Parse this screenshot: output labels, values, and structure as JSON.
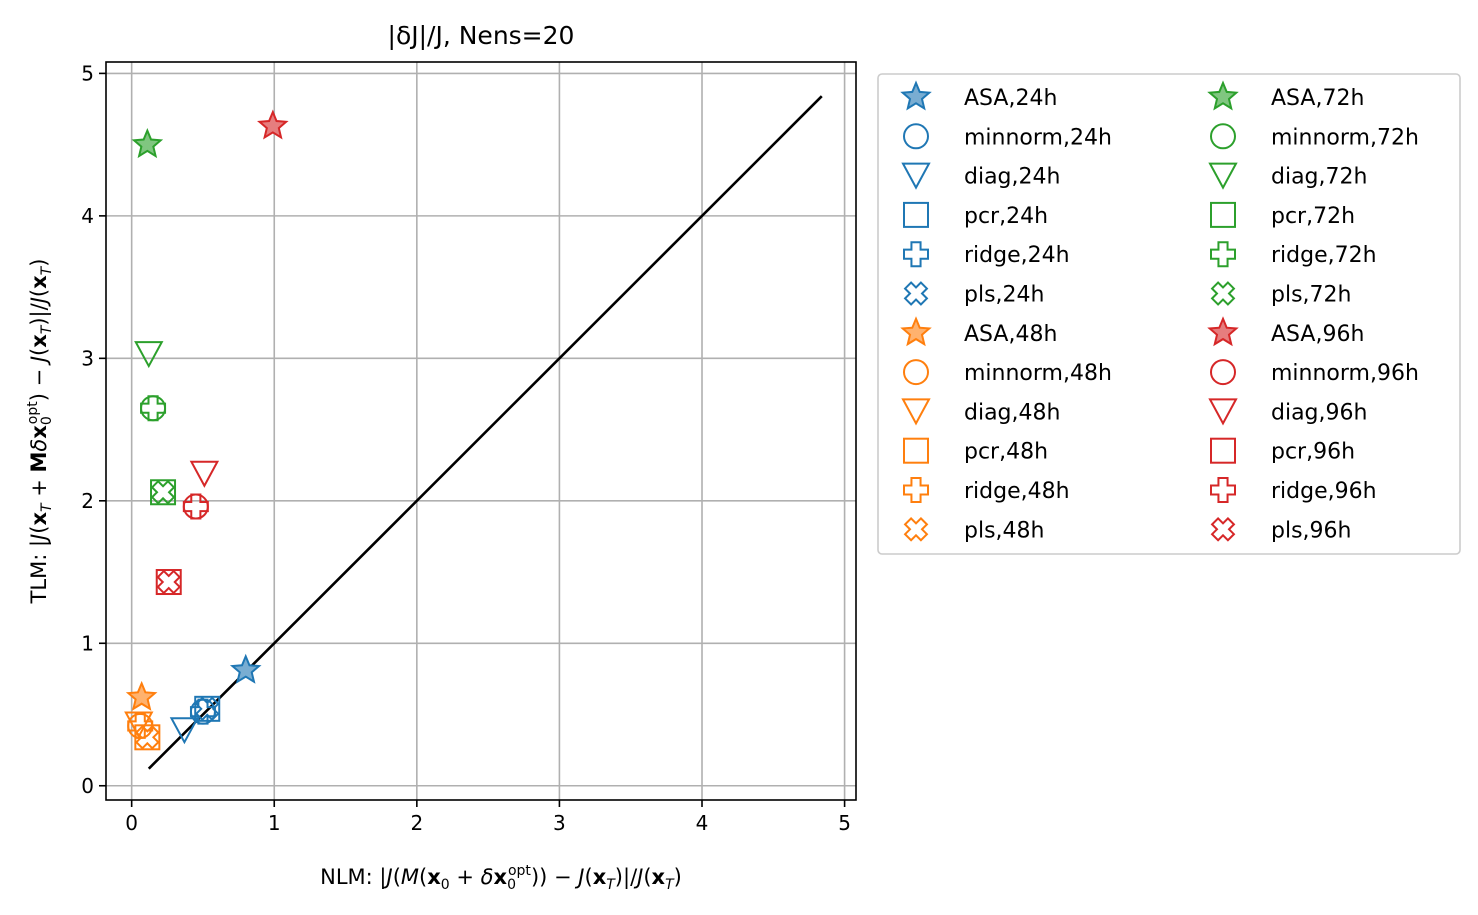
{
  "chart_data": {
    "type": "scatter",
    "title": "|δJ|/J, Nens=20",
    "xlabel": "NLM: |J(M(x₀ + δx₀ᵒᵖᵗ)) − J(x_T)|/J(x_T)",
    "ylabel": "TLM: |J(x_T + Mδx₀ᵒᵖᵗ) − J(x_T)|/J(x_T)",
    "xlim": [
      -0.18,
      5.08
    ],
    "ylim": [
      -0.1,
      5.08
    ],
    "xticks": [
      0,
      1,
      2,
      3,
      4,
      5
    ],
    "yticks": [
      0,
      1,
      2,
      3,
      4,
      5
    ],
    "xtick_labels": [
      "0",
      "1",
      "2",
      "3",
      "4",
      "5"
    ],
    "ytick_labels": [
      "0",
      "1",
      "2",
      "3",
      "4",
      "5"
    ],
    "grid": true,
    "legend_placement": "outside-right",
    "legend_columns": 2,
    "reference_line": {
      "x": [
        0.12,
        4.84
      ],
      "y": [
        0.12,
        4.84
      ],
      "color": "#000000"
    },
    "colors": {
      "24h": "#1f77b4",
      "48h": "#ff7f0e",
      "72h": "#2ca02c",
      "96h": "#d62728"
    },
    "series": [
      {
        "name": "ASA,24h",
        "marker": "star",
        "color": "#1f77b4",
        "filled": true,
        "x": 0.8,
        "y": 0.81
      },
      {
        "name": "minnorm,24h",
        "marker": "circle",
        "color": "#1f77b4",
        "filled": false,
        "x": 0.5,
        "y": 0.52
      },
      {
        "name": "diag,24h",
        "marker": "triangle-down",
        "color": "#1f77b4",
        "filled": false,
        "x": 0.37,
        "y": 0.39
      },
      {
        "name": "pcr,24h",
        "marker": "square",
        "color": "#1f77b4",
        "filled": false,
        "x": 0.53,
        "y": 0.54
      },
      {
        "name": "ridge,24h",
        "marker": "plus",
        "color": "#1f77b4",
        "filled": false,
        "x": 0.5,
        "y": 0.52
      },
      {
        "name": "pls,24h",
        "marker": "x",
        "color": "#1f77b4",
        "filled": false,
        "x": 0.53,
        "y": 0.54
      },
      {
        "name": "ASA,48h",
        "marker": "star",
        "color": "#ff7f0e",
        "filled": true,
        "x": 0.07,
        "y": 0.62
      },
      {
        "name": "minnorm,48h",
        "marker": "circle",
        "color": "#ff7f0e",
        "filled": false,
        "x": 0.06,
        "y": 0.42
      },
      {
        "name": "diag,48h",
        "marker": "triangle-down",
        "color": "#ff7f0e",
        "filled": false,
        "x": 0.05,
        "y": 0.43
      },
      {
        "name": "pcr,48h",
        "marker": "square",
        "color": "#ff7f0e",
        "filled": false,
        "x": 0.11,
        "y": 0.34
      },
      {
        "name": "ridge,48h",
        "marker": "plus",
        "color": "#ff7f0e",
        "filled": false,
        "x": 0.06,
        "y": 0.42
      },
      {
        "name": "pls,48h",
        "marker": "x",
        "color": "#ff7f0e",
        "filled": false,
        "x": 0.11,
        "y": 0.34
      },
      {
        "name": "ASA,72h",
        "marker": "star",
        "color": "#2ca02c",
        "filled": true,
        "x": 0.11,
        "y": 4.5
      },
      {
        "name": "minnorm,72h",
        "marker": "circle",
        "color": "#2ca02c",
        "filled": false,
        "x": 0.15,
        "y": 2.65
      },
      {
        "name": "diag,72h",
        "marker": "triangle-down",
        "color": "#2ca02c",
        "filled": false,
        "x": 0.12,
        "y": 3.03
      },
      {
        "name": "pcr,72h",
        "marker": "square",
        "color": "#2ca02c",
        "filled": false,
        "x": 0.22,
        "y": 2.06
      },
      {
        "name": "ridge,72h",
        "marker": "plus",
        "color": "#2ca02c",
        "filled": false,
        "x": 0.15,
        "y": 2.65
      },
      {
        "name": "pls,72h",
        "marker": "x",
        "color": "#2ca02c",
        "filled": false,
        "x": 0.22,
        "y": 2.06
      },
      {
        "name": "ASA,96h",
        "marker": "star",
        "color": "#d62728",
        "filled": true,
        "x": 0.99,
        "y": 4.63
      },
      {
        "name": "minnorm,96h",
        "marker": "circle",
        "color": "#d62728",
        "filled": false,
        "x": 0.45,
        "y": 1.96
      },
      {
        "name": "diag,96h",
        "marker": "triangle-down",
        "color": "#d62728",
        "filled": false,
        "x": 0.51,
        "y": 2.19
      },
      {
        "name": "pcr,96h",
        "marker": "square",
        "color": "#d62728",
        "filled": false,
        "x": 0.26,
        "y": 1.43
      },
      {
        "name": "ridge,96h",
        "marker": "plus",
        "color": "#d62728",
        "filled": false,
        "x": 0.45,
        "y": 1.96
      },
      {
        "name": "pls,96h",
        "marker": "x",
        "color": "#d62728",
        "filled": false,
        "x": 0.26,
        "y": 1.43
      }
    ]
  }
}
